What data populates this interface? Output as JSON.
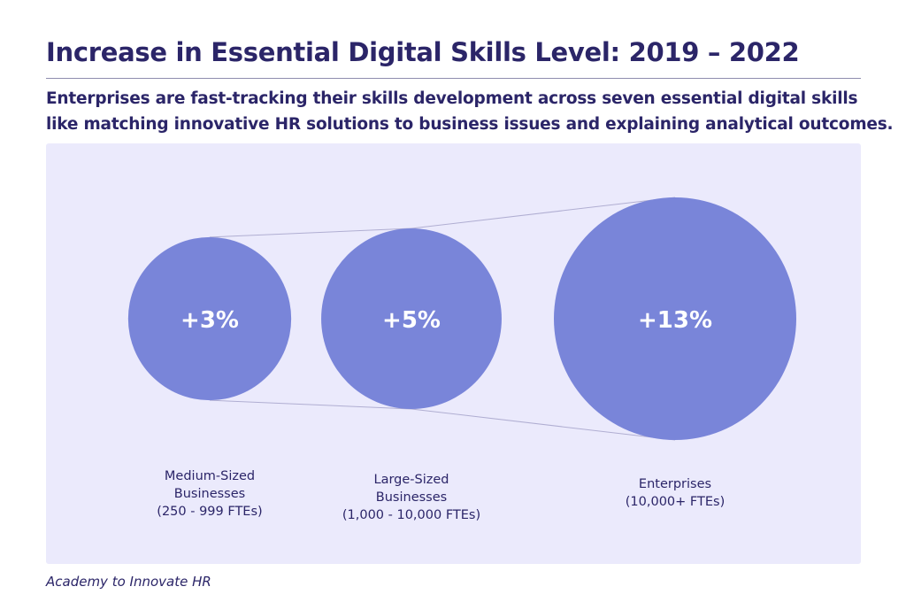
{
  "title": "Increase in Essential Digital Skills Level: 2019 – 2022",
  "subtitle": {
    "line1": "Enterprises are fast-tracking their skills development across seven essential digital skills",
    "line2": "like matching innovative HR solutions to business issues and explaining analytical outcomes."
  },
  "source": "Academy to Innovate HR",
  "colors": {
    "bubble": "#7985d9",
    "panel": "#ebeafc",
    "text": "#2b2568",
    "connector": "#b0aed2"
  },
  "chart_data": {
    "type": "bubble",
    "title": "Increase in Essential Digital Skills Level: 2019 – 2022",
    "unit": "%",
    "categories": [
      "Medium-Sized Businesses (250 - 999 FTEs)",
      "Large-Sized Businesses (1,000 - 10,000 FTEs)",
      "Enterprises (10,000+ FTEs)"
    ],
    "values": [
      3,
      5,
      13
    ],
    "value_labels": [
      "+3%",
      "+5%",
      "+13%"
    ],
    "category_label_lines": [
      [
        "Medium-Sized",
        "Businesses",
        "(250 - 999 FTEs)"
      ],
      [
        "Large-Sized",
        "Businesses",
        "(1,000 - 10,000 FTEs)"
      ],
      [
        "Enterprises",
        "(10,000+ FTEs)"
      ]
    ]
  }
}
